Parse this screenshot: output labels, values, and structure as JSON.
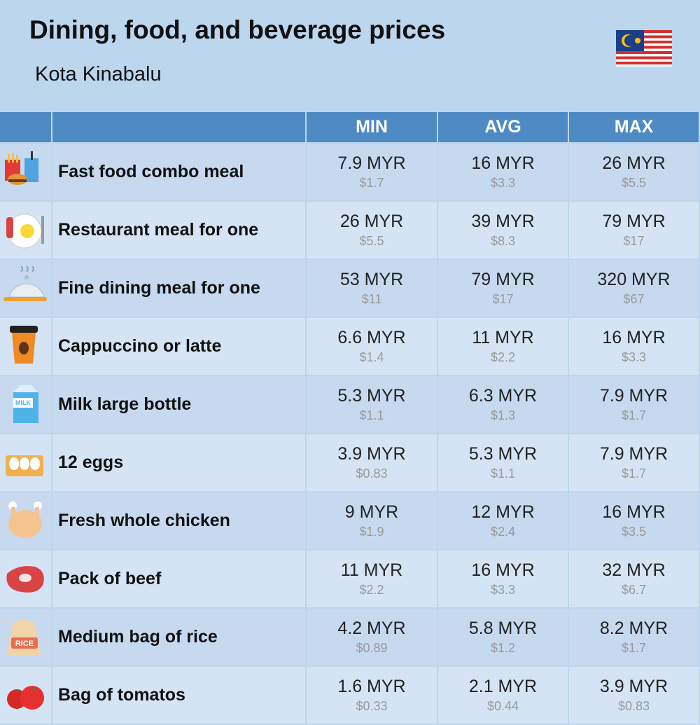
{
  "header": {
    "title": "Dining, food, and beverage prices",
    "subtitle": "Kota Kinabalu"
  },
  "table": {
    "columns": [
      "MIN",
      "AVG",
      "MAX"
    ],
    "rows": [
      {
        "label": "Fast food combo meal",
        "cells": [
          {
            "price": "7.9 MYR",
            "usd": "$1.7"
          },
          {
            "price": "16 MYR",
            "usd": "$3.3"
          },
          {
            "price": "26 MYR",
            "usd": "$5.5"
          }
        ]
      },
      {
        "label": "Restaurant meal for one",
        "cells": [
          {
            "price": "26 MYR",
            "usd": "$5.5"
          },
          {
            "price": "39 MYR",
            "usd": "$8.3"
          },
          {
            "price": "79 MYR",
            "usd": "$17"
          }
        ]
      },
      {
        "label": "Fine dining meal for one",
        "cells": [
          {
            "price": "53 MYR",
            "usd": "$11"
          },
          {
            "price": "79 MYR",
            "usd": "$17"
          },
          {
            "price": "320 MYR",
            "usd": "$67"
          }
        ]
      },
      {
        "label": "Cappuccino or latte",
        "cells": [
          {
            "price": "6.6 MYR",
            "usd": "$1.4"
          },
          {
            "price": "11 MYR",
            "usd": "$2.2"
          },
          {
            "price": "16 MYR",
            "usd": "$3.3"
          }
        ]
      },
      {
        "label": "Milk large bottle",
        "cells": [
          {
            "price": "5.3 MYR",
            "usd": "$1.1"
          },
          {
            "price": "6.3 MYR",
            "usd": "$1.3"
          },
          {
            "price": "7.9 MYR",
            "usd": "$1.7"
          }
        ]
      },
      {
        "label": "12 eggs",
        "cells": [
          {
            "price": "3.9 MYR",
            "usd": "$0.83"
          },
          {
            "price": "5.3 MYR",
            "usd": "$1.1"
          },
          {
            "price": "7.9 MYR",
            "usd": "$1.7"
          }
        ]
      },
      {
        "label": "Fresh whole chicken",
        "cells": [
          {
            "price": "9 MYR",
            "usd": "$1.9"
          },
          {
            "price": "12 MYR",
            "usd": "$2.4"
          },
          {
            "price": "16 MYR",
            "usd": "$3.5"
          }
        ]
      },
      {
        "label": "Pack of beef",
        "cells": [
          {
            "price": "11 MYR",
            "usd": "$2.2"
          },
          {
            "price": "16 MYR",
            "usd": "$3.3"
          },
          {
            "price": "32 MYR",
            "usd": "$6.7"
          }
        ]
      },
      {
        "label": "Medium bag of rice",
        "cells": [
          {
            "price": "4.2 MYR",
            "usd": "$0.89"
          },
          {
            "price": "5.8 MYR",
            "usd": "$1.2"
          },
          {
            "price": "8.2 MYR",
            "usd": "$1.7"
          }
        ]
      },
      {
        "label": "Bag of tomatos",
        "cells": [
          {
            "price": "1.6 MYR",
            "usd": "$0.33"
          },
          {
            "price": "2.1 MYR",
            "usd": "$0.44"
          },
          {
            "price": "3.9 MYR",
            "usd": "$0.83"
          }
        ]
      }
    ]
  }
}
